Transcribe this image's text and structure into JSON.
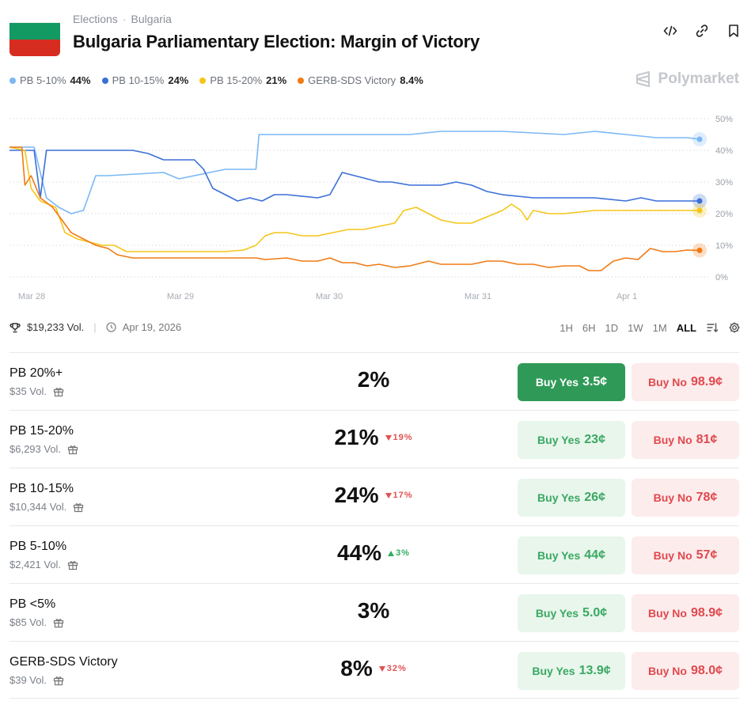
{
  "header": {
    "breadcrumbs": [
      "Elections",
      "Bulgaria"
    ],
    "title": "Bulgaria Parliamentary Election: Margin of Victory",
    "icons": [
      "embed-icon",
      "link-icon",
      "bookmark-icon"
    ],
    "flag_colors": [
      "#ffffff",
      "#139a62",
      "#d62d20"
    ]
  },
  "legend": [
    {
      "label": "PB 5-10%",
      "value": "44%",
      "color": "#7ab8f5"
    },
    {
      "label": "PB 10-15%",
      "value": "24%",
      "color": "#3b6fd8"
    },
    {
      "label": "PB 15-20%",
      "value": "21%",
      "color": "#f5c518"
    },
    {
      "label": "GERB-SDS Victory",
      "value": "8.4%",
      "color": "#f07a14"
    }
  ],
  "brand": "Polymarket",
  "chart_data": {
    "type": "line",
    "x_labels": [
      "Mar 28",
      "Mar 29",
      "Mar 30",
      "Mar 31",
      "Apr 1"
    ],
    "y_ticks": [
      "50%",
      "40%",
      "30%",
      "20%",
      "10%",
      "0%"
    ],
    "ylim": [
      0,
      50
    ],
    "grid": true,
    "series": [
      {
        "name": "PB 5-10%",
        "color": "#7ab8f5",
        "points": [
          [
            0,
            41
          ],
          [
            0.8,
            41
          ],
          [
            1.2,
            25
          ],
          [
            1.6,
            22
          ],
          [
            2.0,
            20
          ],
          [
            2.4,
            21
          ],
          [
            2.8,
            32
          ],
          [
            3.2,
            32
          ],
          [
            5.0,
            33
          ],
          [
            5.5,
            31
          ],
          [
            6.5,
            33
          ],
          [
            7.0,
            34
          ],
          [
            8.0,
            34
          ],
          [
            8.1,
            45
          ],
          [
            9.0,
            45
          ],
          [
            10.0,
            45
          ],
          [
            11.0,
            45
          ],
          [
            12.0,
            45
          ],
          [
            13.0,
            45
          ],
          [
            14.0,
            46
          ],
          [
            16.0,
            46
          ],
          [
            18.0,
            45
          ],
          [
            19.0,
            46
          ],
          [
            20.0,
            45
          ],
          [
            21.0,
            44
          ],
          [
            22.0,
            44
          ],
          [
            22.4,
            43.5
          ]
        ]
      },
      {
        "name": "PB 10-15%",
        "color": "#3b6fd8",
        "points": [
          [
            0,
            40
          ],
          [
            0.8,
            40
          ],
          [
            1.0,
            25
          ],
          [
            1.2,
            40
          ],
          [
            2.0,
            40
          ],
          [
            4.0,
            40
          ],
          [
            4.5,
            39
          ],
          [
            5.0,
            37
          ],
          [
            6.0,
            37
          ],
          [
            6.3,
            34
          ],
          [
            6.6,
            28
          ],
          [
            7.0,
            26
          ],
          [
            7.4,
            24
          ],
          [
            7.8,
            25
          ],
          [
            8.2,
            24
          ],
          [
            8.6,
            26
          ],
          [
            9.0,
            26
          ],
          [
            10.0,
            25
          ],
          [
            10.4,
            26
          ],
          [
            10.8,
            33
          ],
          [
            11.2,
            32
          ],
          [
            11.6,
            31
          ],
          [
            12.0,
            30
          ],
          [
            12.4,
            30
          ],
          [
            13.0,
            29
          ],
          [
            14.0,
            29
          ],
          [
            14.5,
            30
          ],
          [
            15.0,
            29
          ],
          [
            15.5,
            27
          ],
          [
            16.0,
            26
          ],
          [
            17.0,
            25
          ],
          [
            18.0,
            25
          ],
          [
            19.0,
            25
          ],
          [
            20.0,
            24
          ],
          [
            20.5,
            25
          ],
          [
            21.0,
            24
          ],
          [
            22.0,
            24
          ],
          [
            22.4,
            24
          ]
        ]
      },
      {
        "name": "PB 15-20%",
        "color": "#f5c518",
        "points": [
          [
            0,
            41
          ],
          [
            0.5,
            40
          ],
          [
            0.7,
            28
          ],
          [
            1.0,
            24
          ],
          [
            1.5,
            22
          ],
          [
            1.8,
            14
          ],
          [
            2.2,
            12
          ],
          [
            2.6,
            11
          ],
          [
            3.0,
            10
          ],
          [
            3.4,
            10
          ],
          [
            3.8,
            8
          ],
          [
            4.0,
            8
          ],
          [
            5.0,
            8
          ],
          [
            6.0,
            8
          ],
          [
            7.0,
            8
          ],
          [
            7.6,
            8.5
          ],
          [
            8.0,
            10
          ],
          [
            8.3,
            13
          ],
          [
            8.6,
            14
          ],
          [
            9.0,
            14
          ],
          [
            9.5,
            13
          ],
          [
            10.0,
            13
          ],
          [
            10.5,
            14
          ],
          [
            11.0,
            15
          ],
          [
            11.5,
            15
          ],
          [
            12.0,
            16
          ],
          [
            12.5,
            17
          ],
          [
            12.8,
            21
          ],
          [
            13.2,
            22
          ],
          [
            13.6,
            20
          ],
          [
            14.0,
            18
          ],
          [
            14.5,
            17
          ],
          [
            15.0,
            17
          ],
          [
            15.5,
            19
          ],
          [
            16.0,
            21
          ],
          [
            16.3,
            23
          ],
          [
            16.6,
            21
          ],
          [
            16.8,
            18
          ],
          [
            17.0,
            21
          ],
          [
            17.5,
            20
          ],
          [
            18.0,
            20
          ],
          [
            19.0,
            21
          ],
          [
            20.0,
            21
          ],
          [
            21.0,
            21
          ],
          [
            22.0,
            21
          ],
          [
            22.4,
            21
          ]
        ]
      },
      {
        "name": "GERB-SDS Victory",
        "color": "#f07a14",
        "points": [
          [
            0,
            41
          ],
          [
            0.4,
            41
          ],
          [
            0.5,
            29
          ],
          [
            0.7,
            32
          ],
          [
            1.0,
            25
          ],
          [
            1.4,
            22
          ],
          [
            1.7,
            18
          ],
          [
            2.0,
            14
          ],
          [
            2.4,
            12
          ],
          [
            2.8,
            10
          ],
          [
            3.2,
            9
          ],
          [
            3.5,
            7
          ],
          [
            4.0,
            6
          ],
          [
            5.0,
            6
          ],
          [
            6.0,
            6
          ],
          [
            7.0,
            6
          ],
          [
            8.0,
            6
          ],
          [
            8.3,
            5.5
          ],
          [
            9.0,
            6
          ],
          [
            9.5,
            5
          ],
          [
            10.0,
            5
          ],
          [
            10.4,
            6
          ],
          [
            10.8,
            4.5
          ],
          [
            11.2,
            4.5
          ],
          [
            11.6,
            3.5
          ],
          [
            12.0,
            4
          ],
          [
            12.5,
            3
          ],
          [
            13.0,
            3.5
          ],
          [
            13.6,
            5
          ],
          [
            14.0,
            4
          ],
          [
            14.5,
            4
          ],
          [
            15.0,
            4
          ],
          [
            15.5,
            5
          ],
          [
            16.0,
            5
          ],
          [
            16.5,
            4
          ],
          [
            17.0,
            4
          ],
          [
            17.5,
            3
          ],
          [
            18.0,
            3.5
          ],
          [
            18.5,
            3.5
          ],
          [
            18.8,
            2
          ],
          [
            19.2,
            2
          ],
          [
            19.6,
            5
          ],
          [
            20.0,
            6
          ],
          [
            20.4,
            5.5
          ],
          [
            20.8,
            9
          ],
          [
            21.2,
            8
          ],
          [
            21.6,
            8
          ],
          [
            22.0,
            8.5
          ],
          [
            22.4,
            8.4
          ]
        ]
      }
    ]
  },
  "stats": {
    "volume": "$19,233 Vol.",
    "end_date": "Apr 19, 2026"
  },
  "ranges": [
    "1H",
    "6H",
    "1D",
    "1W",
    "1M",
    "ALL"
  ],
  "active_range": "ALL",
  "outcomes": [
    {
      "name": "PB 20%+",
      "volume": "$35 Vol.",
      "percent": "2%",
      "change": "",
      "direction": "",
      "yes_label": "Buy Yes",
      "yes_price": "3.5¢",
      "no_label": "Buy No",
      "no_price": "98.9¢",
      "primary": true
    },
    {
      "name": "PB 15-20%",
      "volume": "$6,293 Vol.",
      "percent": "21%",
      "change": "19%",
      "direction": "down",
      "yes_label": "Buy Yes",
      "yes_price": "23¢",
      "no_label": "Buy No",
      "no_price": "81¢",
      "primary": false
    },
    {
      "name": "PB 10-15%",
      "volume": "$10,344 Vol.",
      "percent": "24%",
      "change": "17%",
      "direction": "down",
      "yes_label": "Buy Yes",
      "yes_price": "26¢",
      "no_label": "Buy No",
      "no_price": "78¢",
      "primary": false
    },
    {
      "name": "PB 5-10%",
      "volume": "$2,421 Vol.",
      "percent": "44%",
      "change": "3%",
      "direction": "up",
      "yes_label": "Buy Yes",
      "yes_price": "44¢",
      "no_label": "Buy No",
      "no_price": "57¢",
      "primary": false
    },
    {
      "name": "PB <5%",
      "volume": "$85 Vol.",
      "percent": "3%",
      "change": "",
      "direction": "",
      "yes_label": "Buy Yes",
      "yes_price": "5.0¢",
      "no_label": "Buy No",
      "no_price": "98.9¢",
      "primary": false
    },
    {
      "name": "GERB-SDS Victory",
      "volume": "$39 Vol.",
      "percent": "8%",
      "change": "32%",
      "direction": "down",
      "yes_label": "Buy Yes",
      "yes_price": "13.9¢",
      "no_label": "Buy No",
      "no_price": "98.0¢",
      "primary": false
    }
  ]
}
